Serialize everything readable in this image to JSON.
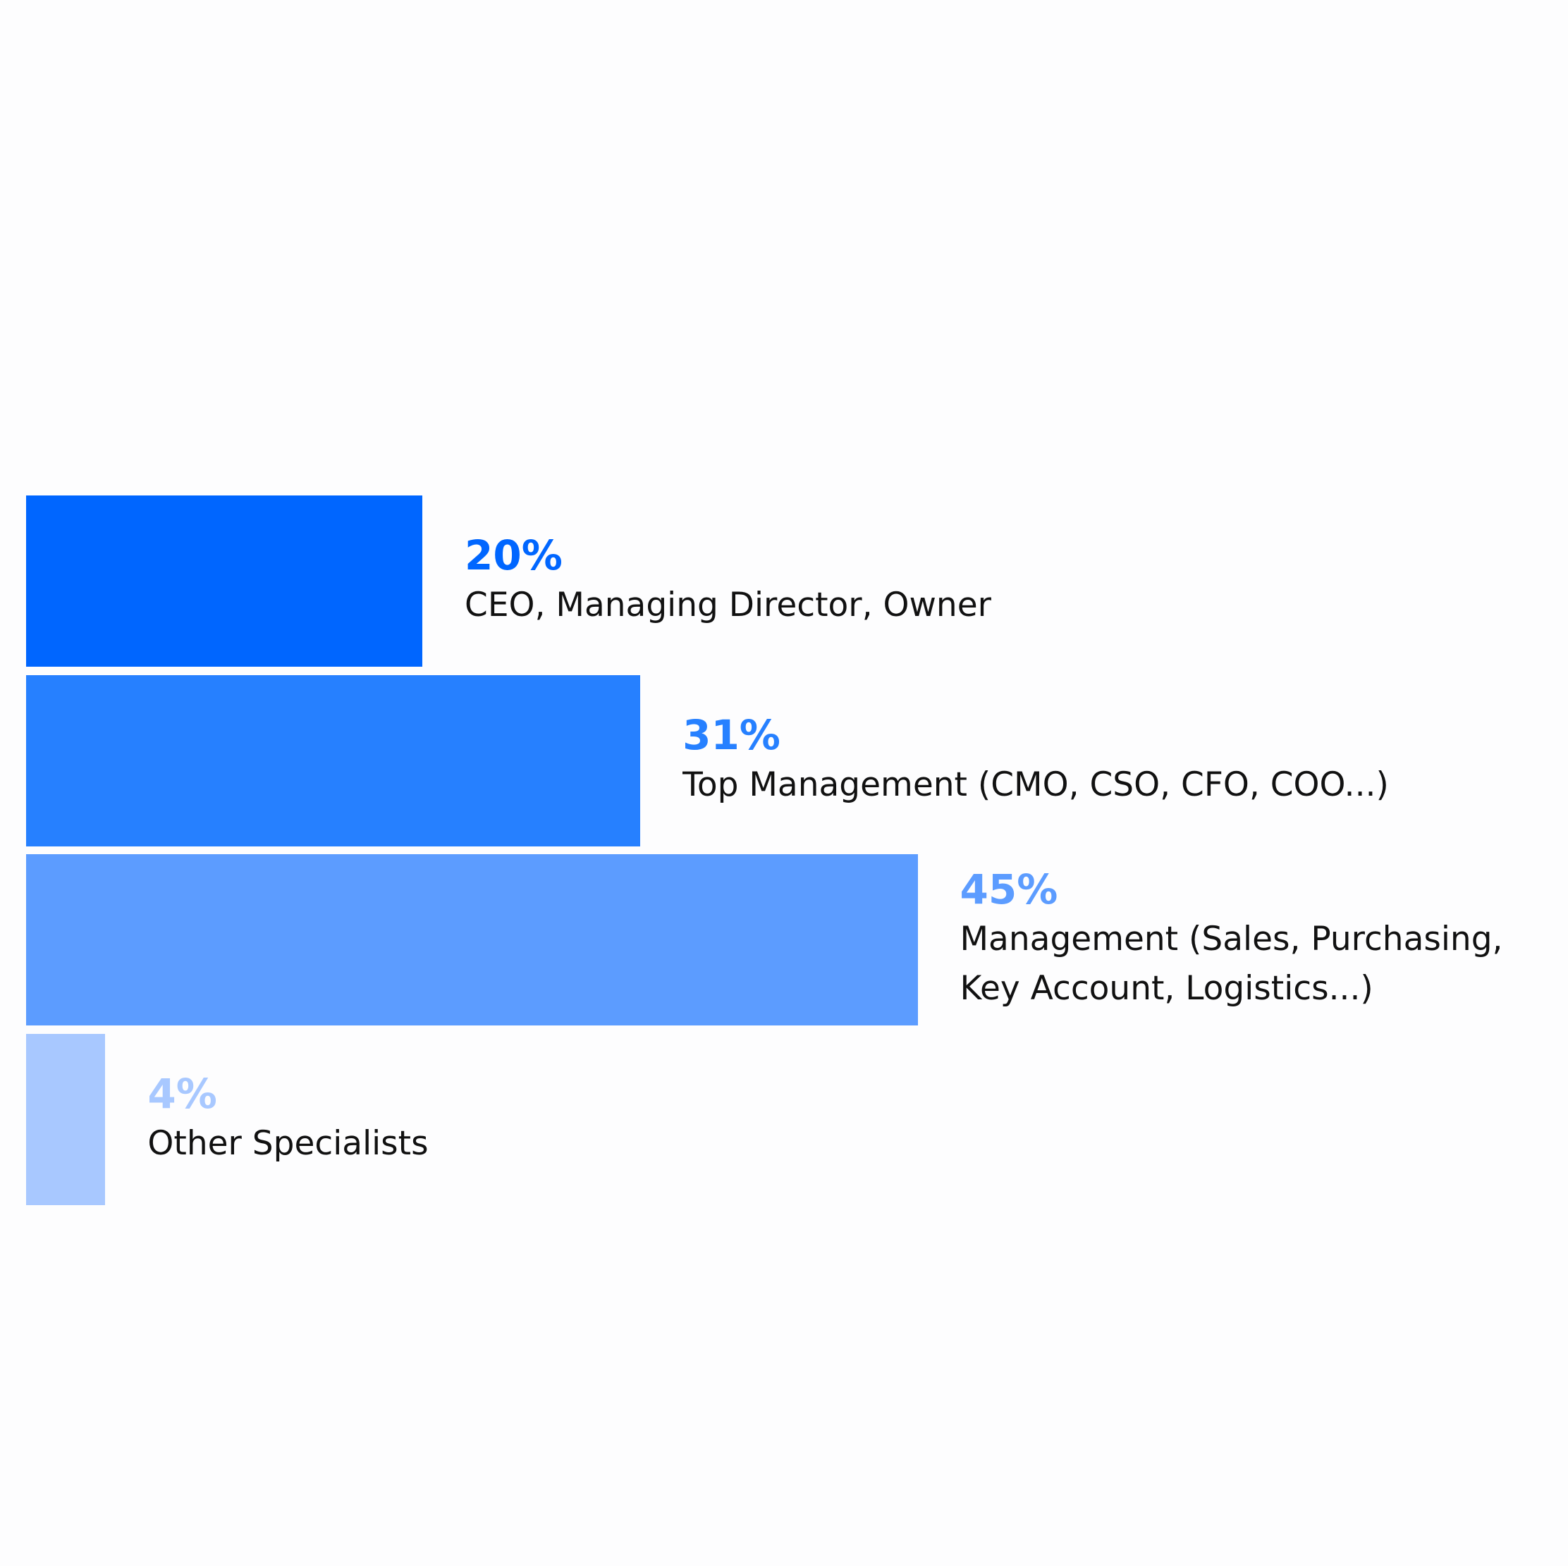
{
  "chart_data": {
    "type": "bar",
    "orientation": "horizontal",
    "categories": [
      "CEO, Managing Director, Owner",
      "Top Management (CMO, CSO, CFO, COO...)",
      "Management (Sales, Purchasing, Key Account, Logistics...)",
      "Other Specialists"
    ],
    "values": [
      20,
      31,
      45,
      4
    ],
    "value_labels": [
      "20%",
      "31%",
      "45%",
      "4%"
    ],
    "colors": [
      "#0066ff",
      "#2680ff",
      "#5c9cff",
      "#a8c8ff"
    ]
  }
}
